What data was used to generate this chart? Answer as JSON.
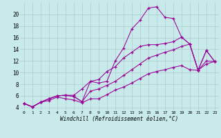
{
  "xlabel": "Windchill (Refroidissement éolien,°C)",
  "bg_color": "#c8eaea",
  "grid_color": "#aacccc",
  "line_color": "#990099",
  "xlim": [
    -0.5,
    23.5
  ],
  "ylim": [
    3.5,
    22
  ],
  "xticks": [
    0,
    1,
    2,
    3,
    4,
    5,
    6,
    7,
    8,
    9,
    10,
    11,
    12,
    13,
    14,
    15,
    16,
    17,
    18,
    19,
    20,
    21,
    22,
    23
  ],
  "yticks": [
    4,
    6,
    8,
    10,
    12,
    14,
    16,
    18,
    20
  ],
  "line1_y": [
    4.7,
    4.1,
    4.9,
    5.5,
    6.0,
    6.1,
    5.9,
    5.0,
    8.5,
    8.2,
    8.5,
    12.0,
    14.2,
    17.5,
    19.0,
    21.1,
    21.3,
    19.5,
    19.3,
    16.1,
    14.9,
    10.4,
    13.8,
    11.9
  ],
  "line2_y": [
    4.7,
    4.1,
    4.9,
    5.5,
    6.0,
    6.1,
    6.1,
    7.2,
    8.5,
    8.8,
    10.2,
    11.0,
    12.5,
    13.5,
    14.5,
    14.8,
    14.8,
    15.0,
    15.3,
    16.1,
    14.9,
    10.4,
    13.8,
    11.9
  ],
  "line3_y": [
    4.7,
    4.1,
    4.9,
    5.5,
    6.0,
    6.1,
    5.9,
    5.0,
    6.8,
    7.2,
    7.8,
    8.5,
    9.5,
    10.5,
    11.5,
    12.5,
    13.0,
    13.5,
    13.9,
    14.5,
    14.9,
    10.4,
    12.0,
    11.9
  ],
  "line4_y": [
    4.7,
    4.1,
    4.9,
    5.2,
    5.8,
    5.5,
    5.3,
    4.8,
    5.5,
    5.5,
    6.2,
    7.0,
    7.5,
    8.2,
    9.0,
    9.8,
    10.2,
    10.5,
    10.9,
    11.2,
    10.5,
    10.4,
    11.5,
    11.9
  ]
}
